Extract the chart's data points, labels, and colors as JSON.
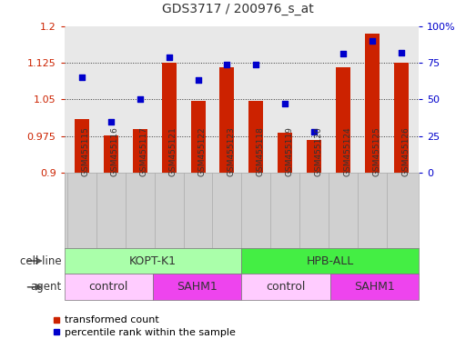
{
  "title": "GDS3717 / 200976_s_at",
  "samples": [
    "GSM455115",
    "GSM455116",
    "GSM455117",
    "GSM455121",
    "GSM455122",
    "GSM455123",
    "GSM455118",
    "GSM455119",
    "GSM455120",
    "GSM455124",
    "GSM455125",
    "GSM455126"
  ],
  "transformed_counts": [
    1.01,
    0.977,
    0.99,
    1.125,
    1.048,
    1.115,
    1.047,
    0.982,
    0.968,
    1.115,
    1.185,
    1.125
  ],
  "percentile_ranks": [
    65,
    35,
    50,
    79,
    63,
    74,
    74,
    47,
    28,
    81,
    90,
    82
  ],
  "ylim_left": [
    0.9,
    1.2
  ],
  "ylim_right": [
    0,
    100
  ],
  "yticks_left": [
    0.9,
    0.975,
    1.05,
    1.125,
    1.2
  ],
  "yticks_left_labels": [
    "0.9",
    "0.975",
    "1.05",
    "1.125",
    "1.2"
  ],
  "yticks_right": [
    0,
    25,
    50,
    75,
    100
  ],
  "yticks_right_labels": [
    "0",
    "25",
    "50",
    "75",
    "100%"
  ],
  "bar_color": "#cc2200",
  "dot_color": "#0000cc",
  "bar_bottom": 0.9,
  "cell_line_groups": [
    {
      "label": "KOPT-K1",
      "start": 0,
      "end": 6,
      "color": "#aaffaa"
    },
    {
      "label": "HPB-ALL",
      "start": 6,
      "end": 12,
      "color": "#44ee44"
    }
  ],
  "agent_groups": [
    {
      "label": "control",
      "start": 0,
      "end": 3,
      "color": "#ffccff"
    },
    {
      "label": "SAHM1",
      "start": 3,
      "end": 6,
      "color": "#ee44ee"
    },
    {
      "label": "control",
      "start": 6,
      "end": 9,
      "color": "#ffccff"
    },
    {
      "label": "SAHM1",
      "start": 9,
      "end": 12,
      "color": "#ee44ee"
    }
  ],
  "legend_bar_label": "transformed count",
  "legend_dot_label": "percentile rank within the sample",
  "cell_line_label": "cell line",
  "agent_label": "agent",
  "plot_bg": "#e8e8e8",
  "xtick_bg": "#d0d0d0",
  "grid_dotted_vals": [
    0.975,
    1.05,
    1.125
  ],
  "bar_width": 0.5
}
